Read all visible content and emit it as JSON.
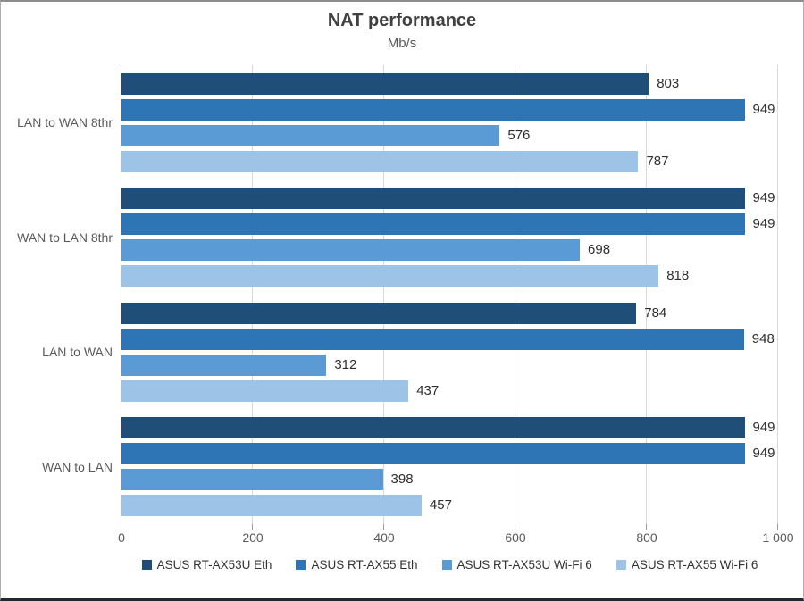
{
  "chart": {
    "title": "NAT performance",
    "subtitle": "Mb/s"
  },
  "chart_data": {
    "type": "bar",
    "orientation": "horizontal",
    "title": "NAT performance",
    "subtitle": "Mb/s",
    "categories": [
      "LAN to WAN 8thr",
      "WAN to LAN 8thr",
      "LAN to WAN",
      "WAN to LAN"
    ],
    "series": [
      {
        "name": "ASUS RT-AX53U Eth",
        "color": "#1f4e79",
        "values": [
          803,
          949,
          784,
          949
        ]
      },
      {
        "name": "ASUS RT-AX55 Eth",
        "color": "#2e75b6",
        "values": [
          949,
          949,
          948,
          949
        ]
      },
      {
        "name": "ASUS RT-AX53U Wi-Fi 6",
        "color": "#5b9bd5",
        "values": [
          576,
          698,
          312,
          398
        ]
      },
      {
        "name": "ASUS RT-AX55 Wi-Fi 6",
        "color": "#9dc3e6",
        "values": [
          787,
          818,
          437,
          457
        ]
      }
    ],
    "xlim": [
      0,
      1000
    ],
    "x_tick_values": [
      0,
      200,
      400,
      600,
      800,
      1000
    ],
    "x_tick_labels": [
      "0",
      "200",
      "400",
      "600",
      "800",
      "1 000"
    ],
    "grid": true,
    "data_labels": true,
    "legend_position": "bottom",
    "colors": {
      "gridline": "#d9d9d9",
      "axis_line": "#9b9b9b",
      "title_text": "#404040",
      "axis_text": "#595959",
      "data_label_text": "#2f2f2f"
    }
  }
}
